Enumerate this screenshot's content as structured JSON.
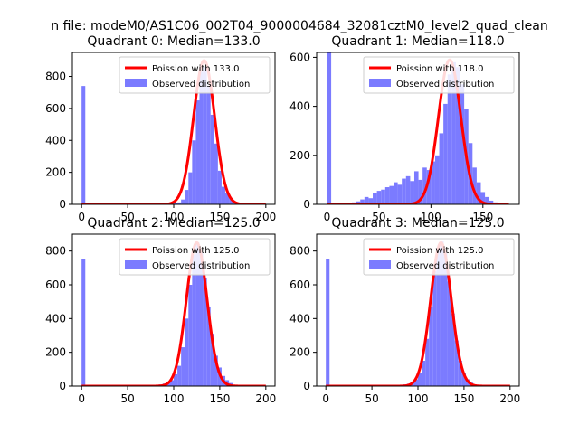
{
  "suptitle": "n file: modeM0/AS1C06_002T04_9000004684_32081cztM0_level2_quad_clean",
  "colors": {
    "hist": "#7b7bff",
    "fit": "#ff0000",
    "fit_light": "#ff8a8a"
  },
  "chart_data": [
    {
      "type": "bar",
      "title": "Quadrant 0: Median=133.0",
      "xlim": [
        -10,
        210
      ],
      "ylim": [
        0,
        950
      ],
      "xticks": [
        0,
        50,
        100,
        150,
        200
      ],
      "yticks": [
        0,
        200,
        400,
        600,
        800
      ],
      "legend": {
        "placement": "top-right",
        "entries": [
          "Poission with 133.0",
          "Observed distribution"
        ]
      },
      "median": 133,
      "fit_peak": 900,
      "fit_sigma": 11.5,
      "hist_bin_width": 4,
      "hist_x": [
        0,
        4,
        92,
        96,
        100,
        104,
        108,
        112,
        116,
        120,
        124,
        128,
        132,
        136,
        140,
        144,
        148,
        152,
        156,
        160,
        164,
        168,
        172
      ],
      "hist_counts": [
        740,
        8,
        3,
        4,
        6,
        12,
        30,
        90,
        200,
        400,
        650,
        830,
        860,
        740,
        560,
        380,
        210,
        110,
        70,
        40,
        15,
        8,
        3
      ]
    },
    {
      "type": "bar",
      "title": "Quadrant 1: Median=118.0",
      "xlim": [
        -10,
        185
      ],
      "ylim": [
        0,
        620
      ],
      "xticks": [
        0,
        50,
        100,
        150
      ],
      "yticks": [
        0,
        200,
        400,
        600
      ],
      "legend": {
        "placement": "top-right",
        "entries": [
          "Poission with 118.0",
          "Observed distribution"
        ]
      },
      "median": 118,
      "fit_peak": 590,
      "fit_sigma": 10.8,
      "hist_bin_width": 4,
      "hist_x": [
        0,
        4,
        24,
        28,
        32,
        36,
        40,
        44,
        48,
        52,
        56,
        60,
        64,
        68,
        72,
        76,
        80,
        84,
        88,
        92,
        96,
        100,
        104,
        108,
        112,
        116,
        120,
        124,
        128,
        132,
        136,
        140,
        144,
        148,
        152,
        156,
        160
      ],
      "hist_counts": [
        620,
        5,
        8,
        12,
        20,
        30,
        25,
        45,
        55,
        60,
        70,
        75,
        90,
        80,
        105,
        115,
        95,
        135,
        100,
        150,
        140,
        175,
        200,
        290,
        410,
        530,
        580,
        560,
        490,
        390,
        250,
        150,
        90,
        50,
        30,
        15,
        8
      ]
    },
    {
      "type": "bar",
      "title": "Quadrant 2: Median=125.0",
      "xlim": [
        -10,
        210
      ],
      "ylim": [
        0,
        900
      ],
      "xticks": [
        0,
        50,
        100,
        150,
        200
      ],
      "yticks": [
        0,
        200,
        400,
        600,
        800
      ],
      "legend": {
        "placement": "top-right",
        "entries": [
          "Poission with 125.0",
          "Observed distribution"
        ]
      },
      "median": 125,
      "fit_peak": 850,
      "fit_sigma": 11.2,
      "hist_bin_width": 4,
      "hist_x": [
        0,
        4,
        52,
        76,
        84,
        88,
        92,
        96,
        100,
        104,
        108,
        112,
        116,
        120,
        124,
        128,
        132,
        136,
        140,
        144,
        148,
        152,
        156,
        160,
        164,
        168
      ],
      "hist_counts": [
        750,
        5,
        5,
        8,
        10,
        15,
        20,
        35,
        70,
        120,
        230,
        400,
        600,
        780,
        850,
        790,
        640,
        470,
        310,
        180,
        110,
        60,
        35,
        18,
        8,
        4
      ]
    },
    {
      "type": "bar",
      "title": "Quadrant 3: Median=125.0",
      "xlim": [
        -10,
        210
      ],
      "ylim": [
        0,
        900
      ],
      "xticks": [
        0,
        50,
        100,
        150,
        200
      ],
      "yticks": [
        0,
        200,
        400,
        600,
        800
      ],
      "legend": {
        "placement": "top-right",
        "entries": [
          "Poission with 125.0",
          "Observed distribution"
        ]
      },
      "median": 125,
      "fit_peak": 850,
      "fit_sigma": 11.2,
      "hist_bin_width": 4,
      "hist_x": [
        0,
        4,
        76,
        84,
        88,
        92,
        96,
        100,
        104,
        108,
        112,
        116,
        120,
        124,
        128,
        132,
        136,
        140,
        144,
        148,
        152,
        156,
        160,
        164
      ],
      "hist_counts": [
        750,
        5,
        6,
        10,
        14,
        22,
        40,
        80,
        150,
        280,
        470,
        680,
        820,
        860,
        790,
        620,
        430,
        270,
        150,
        80,
        40,
        20,
        10,
        4
      ]
    }
  ]
}
